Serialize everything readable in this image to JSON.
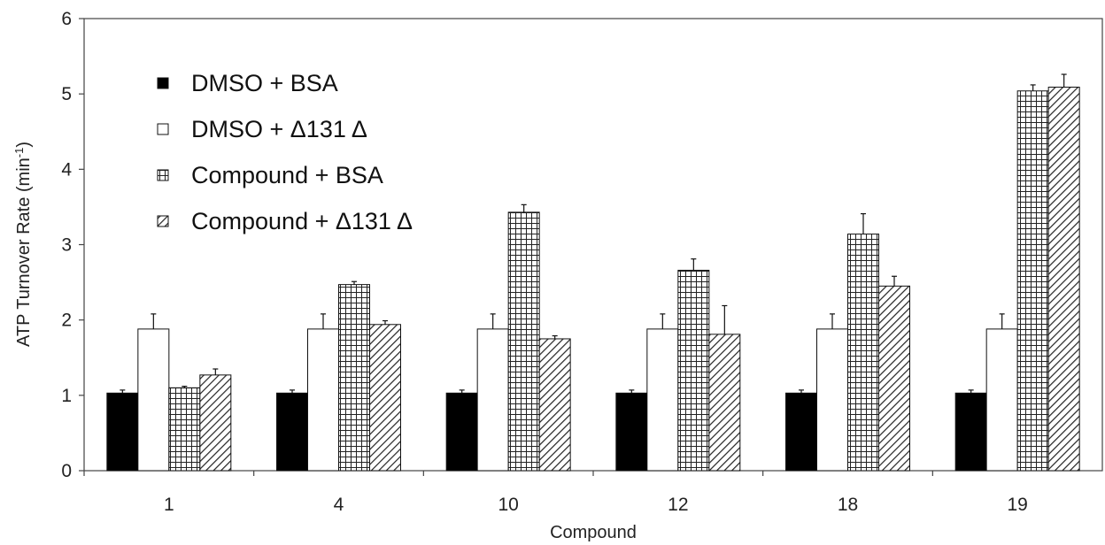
{
  "chart_data": {
    "type": "bar",
    "title": "",
    "xlabel": "Compound",
    "ylabel": "ATP Turnover Rate (min",
    "ylabel_sup": "-1",
    "ylabel_end": ")",
    "ylim": [
      0,
      6
    ],
    "yticks": [
      0,
      1,
      2,
      3,
      4,
      5,
      6
    ],
    "categories": [
      "1",
      "4",
      "10",
      "12",
      "18",
      "19"
    ],
    "legend_position": "top-left",
    "grid": false,
    "series": [
      {
        "name": "DMSO + BSA",
        "pattern": "solid-black",
        "values": [
          1.03,
          1.03,
          1.03,
          1.03,
          1.03,
          1.03
        ],
        "errors": [
          0.04,
          0.04,
          0.04,
          0.04,
          0.04,
          0.04
        ]
      },
      {
        "name": "DMSO + Δ131 Δ",
        "pattern": "white",
        "values": [
          1.88,
          1.88,
          1.88,
          1.88,
          1.88,
          1.88
        ],
        "errors": [
          0.2,
          0.2,
          0.2,
          0.2,
          0.2,
          0.2
        ]
      },
      {
        "name": "Compound + BSA",
        "pattern": "grid",
        "values": [
          1.1,
          2.47,
          3.43,
          2.66,
          3.14,
          5.04
        ],
        "errors": [
          0.02,
          0.04,
          0.1,
          0.15,
          0.27,
          0.08
        ]
      },
      {
        "name": "Compound + Δ131 Δ",
        "pattern": "diagonal",
        "values": [
          1.27,
          1.94,
          1.75,
          1.81,
          2.45,
          5.09
        ],
        "errors": [
          0.08,
          0.05,
          0.04,
          0.38,
          0.13,
          0.17
        ]
      }
    ]
  }
}
